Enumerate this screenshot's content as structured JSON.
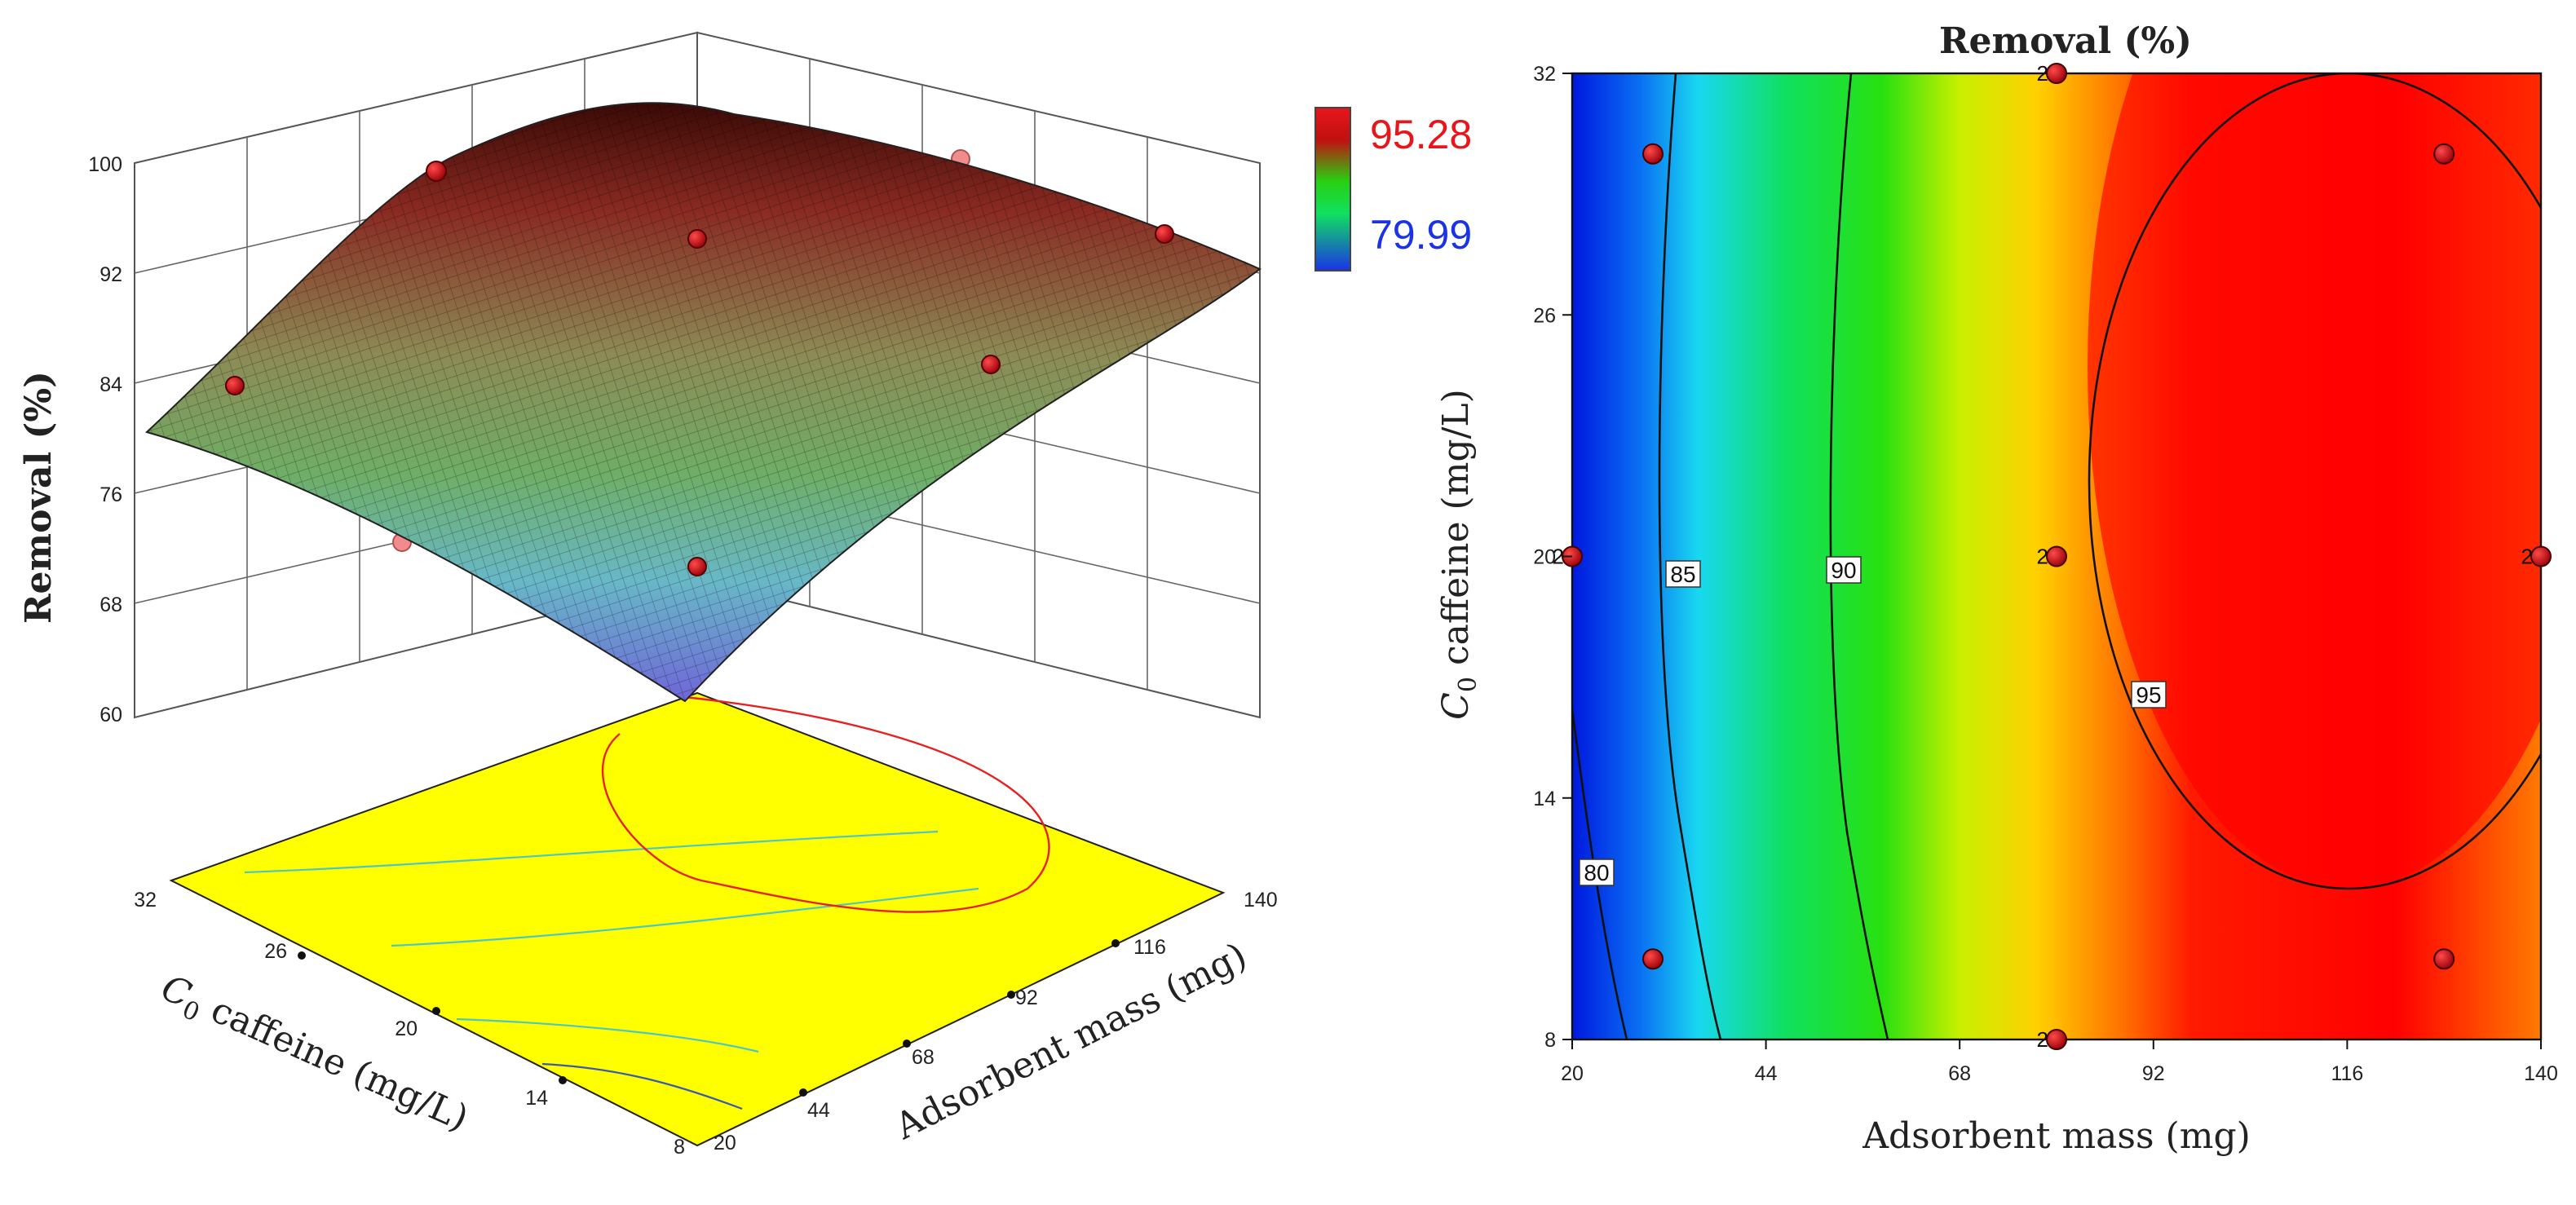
{
  "colors": {
    "surface_high": "#8a2a22",
    "surface_mid": "#6fa36a",
    "surface_low": "#6f78d8",
    "base_plane": "#ffff00",
    "point": "#c8000c",
    "point_ghost": "#f08c8c",
    "legend_max": "#e8161b",
    "legend_min": "#1a33e6"
  },
  "chart_data": [
    {
      "type": "surface3d",
      "zlabel": "Removal (%)",
      "xlabel": "Adsorbent mass (mg)",
      "ylabel_sym": "C",
      "ylabel_sub": "0",
      "ylabel_rest": " caffeine (mg/L)",
      "z_ticks": [
        "60",
        "68",
        "76",
        "84",
        "92",
        "100"
      ],
      "x_ticks": [
        "20",
        "44",
        "68",
        "92",
        "116",
        "140"
      ],
      "y_ticks": [
        "8",
        "14",
        "20",
        "26",
        "32"
      ],
      "zlim": [
        60,
        100
      ],
      "xlim": [
        20,
        140
      ],
      "ylim": [
        8,
        32
      ],
      "legend_max": "95.28",
      "legend_min": "79.99",
      "design_points": [
        {
          "x": 32,
          "y": 8,
          "z": 83.5
        },
        {
          "x": 32,
          "y": 32,
          "z": 84.0
        },
        {
          "x": 80,
          "y": 8,
          "z": 93.0
        },
        {
          "x": 80,
          "y": 20,
          "z": 94.5
        },
        {
          "x": 80,
          "y": 32,
          "z": 94.5
        },
        {
          "x": 20,
          "y": 20,
          "z": 82.0
        },
        {
          "x": 140,
          "y": 20,
          "z": 94.0
        },
        {
          "x": 128,
          "y": 8,
          "z": 94.5
        },
        {
          "x": 128,
          "y": 32,
          "z": 94.5
        }
      ]
    },
    {
      "type": "contour",
      "title": "Removal (%)",
      "xlabel": "Adsorbent mass (mg)",
      "ylabel_sym": "C",
      "ylabel_sub": "0",
      "ylabel_rest": " caffeine (mg/L)",
      "x_ticks": [
        "20",
        "44",
        "68",
        "92",
        "116",
        "140"
      ],
      "y_ticks": [
        "8",
        "14",
        "20",
        "26",
        "32"
      ],
      "xlim": [
        20,
        140
      ],
      "ylim": [
        8,
        32
      ],
      "contour_labels": [
        "80",
        "85",
        "90",
        "95"
      ],
      "design_points": [
        {
          "x": 30,
          "y": 30
        },
        {
          "x": 30,
          "y": 10
        },
        {
          "x": 80,
          "y": 32,
          "label": "2"
        },
        {
          "x": 80,
          "y": 20,
          "label": "2"
        },
        {
          "x": 80,
          "y": 8,
          "label": "2"
        },
        {
          "x": 20,
          "y": 20,
          "label": "2"
        },
        {
          "x": 140,
          "y": 20,
          "label": "2"
        },
        {
          "x": 128,
          "y": 30
        },
        {
          "x": 128,
          "y": 10
        }
      ]
    }
  ]
}
